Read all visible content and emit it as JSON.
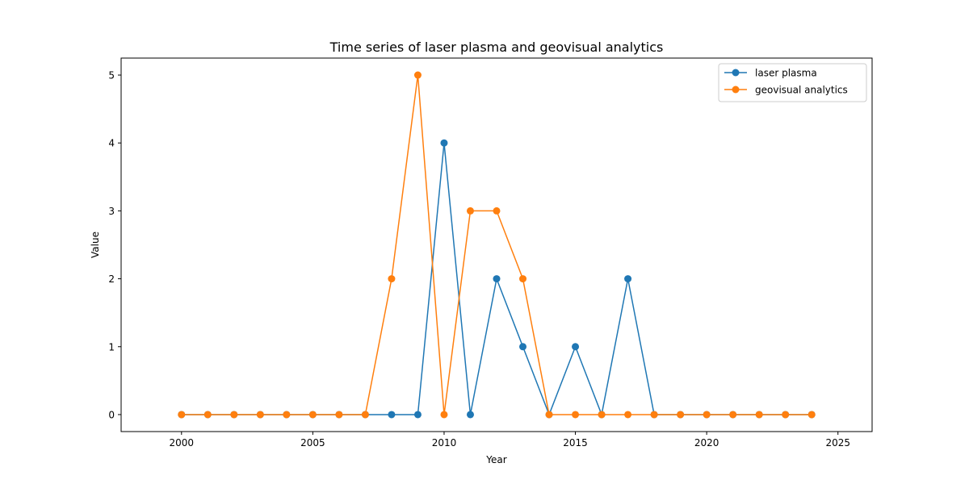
{
  "chart_data": {
    "type": "line",
    "title": "Time series of laser plasma and geovisual analytics",
    "xlabel": "Year",
    "ylabel": "Value",
    "x": [
      2000,
      2001,
      2002,
      2003,
      2004,
      2005,
      2006,
      2007,
      2008,
      2009,
      2010,
      2011,
      2012,
      2013,
      2014,
      2015,
      2016,
      2017,
      2018,
      2019,
      2020,
      2021,
      2022,
      2023,
      2024
    ],
    "xlim": [
      1997.7,
      2026.3
    ],
    "ylim": [
      -0.25,
      5.25
    ],
    "xticks": [
      2000,
      2005,
      2010,
      2015,
      2020,
      2025
    ],
    "yticks": [
      0,
      1,
      2,
      3,
      4,
      5
    ],
    "grid": false,
    "legend_position": "upper right",
    "series": [
      {
        "name": "laser plasma",
        "color": "#1f77b4",
        "marker": "circle",
        "values": [
          0,
          0,
          0,
          0,
          0,
          0,
          0,
          0,
          0,
          0,
          4,
          0,
          2,
          1,
          0,
          1,
          0,
          2,
          0,
          0,
          0,
          0,
          0,
          0,
          0
        ]
      },
      {
        "name": "geovisual analytics",
        "color": "#ff7f0e",
        "marker": "circle",
        "values": [
          0,
          0,
          0,
          0,
          0,
          0,
          0,
          0,
          2,
          5,
          0,
          3,
          3,
          2,
          0,
          0,
          0,
          0,
          0,
          0,
          0,
          0,
          0,
          0,
          0
        ]
      }
    ]
  }
}
